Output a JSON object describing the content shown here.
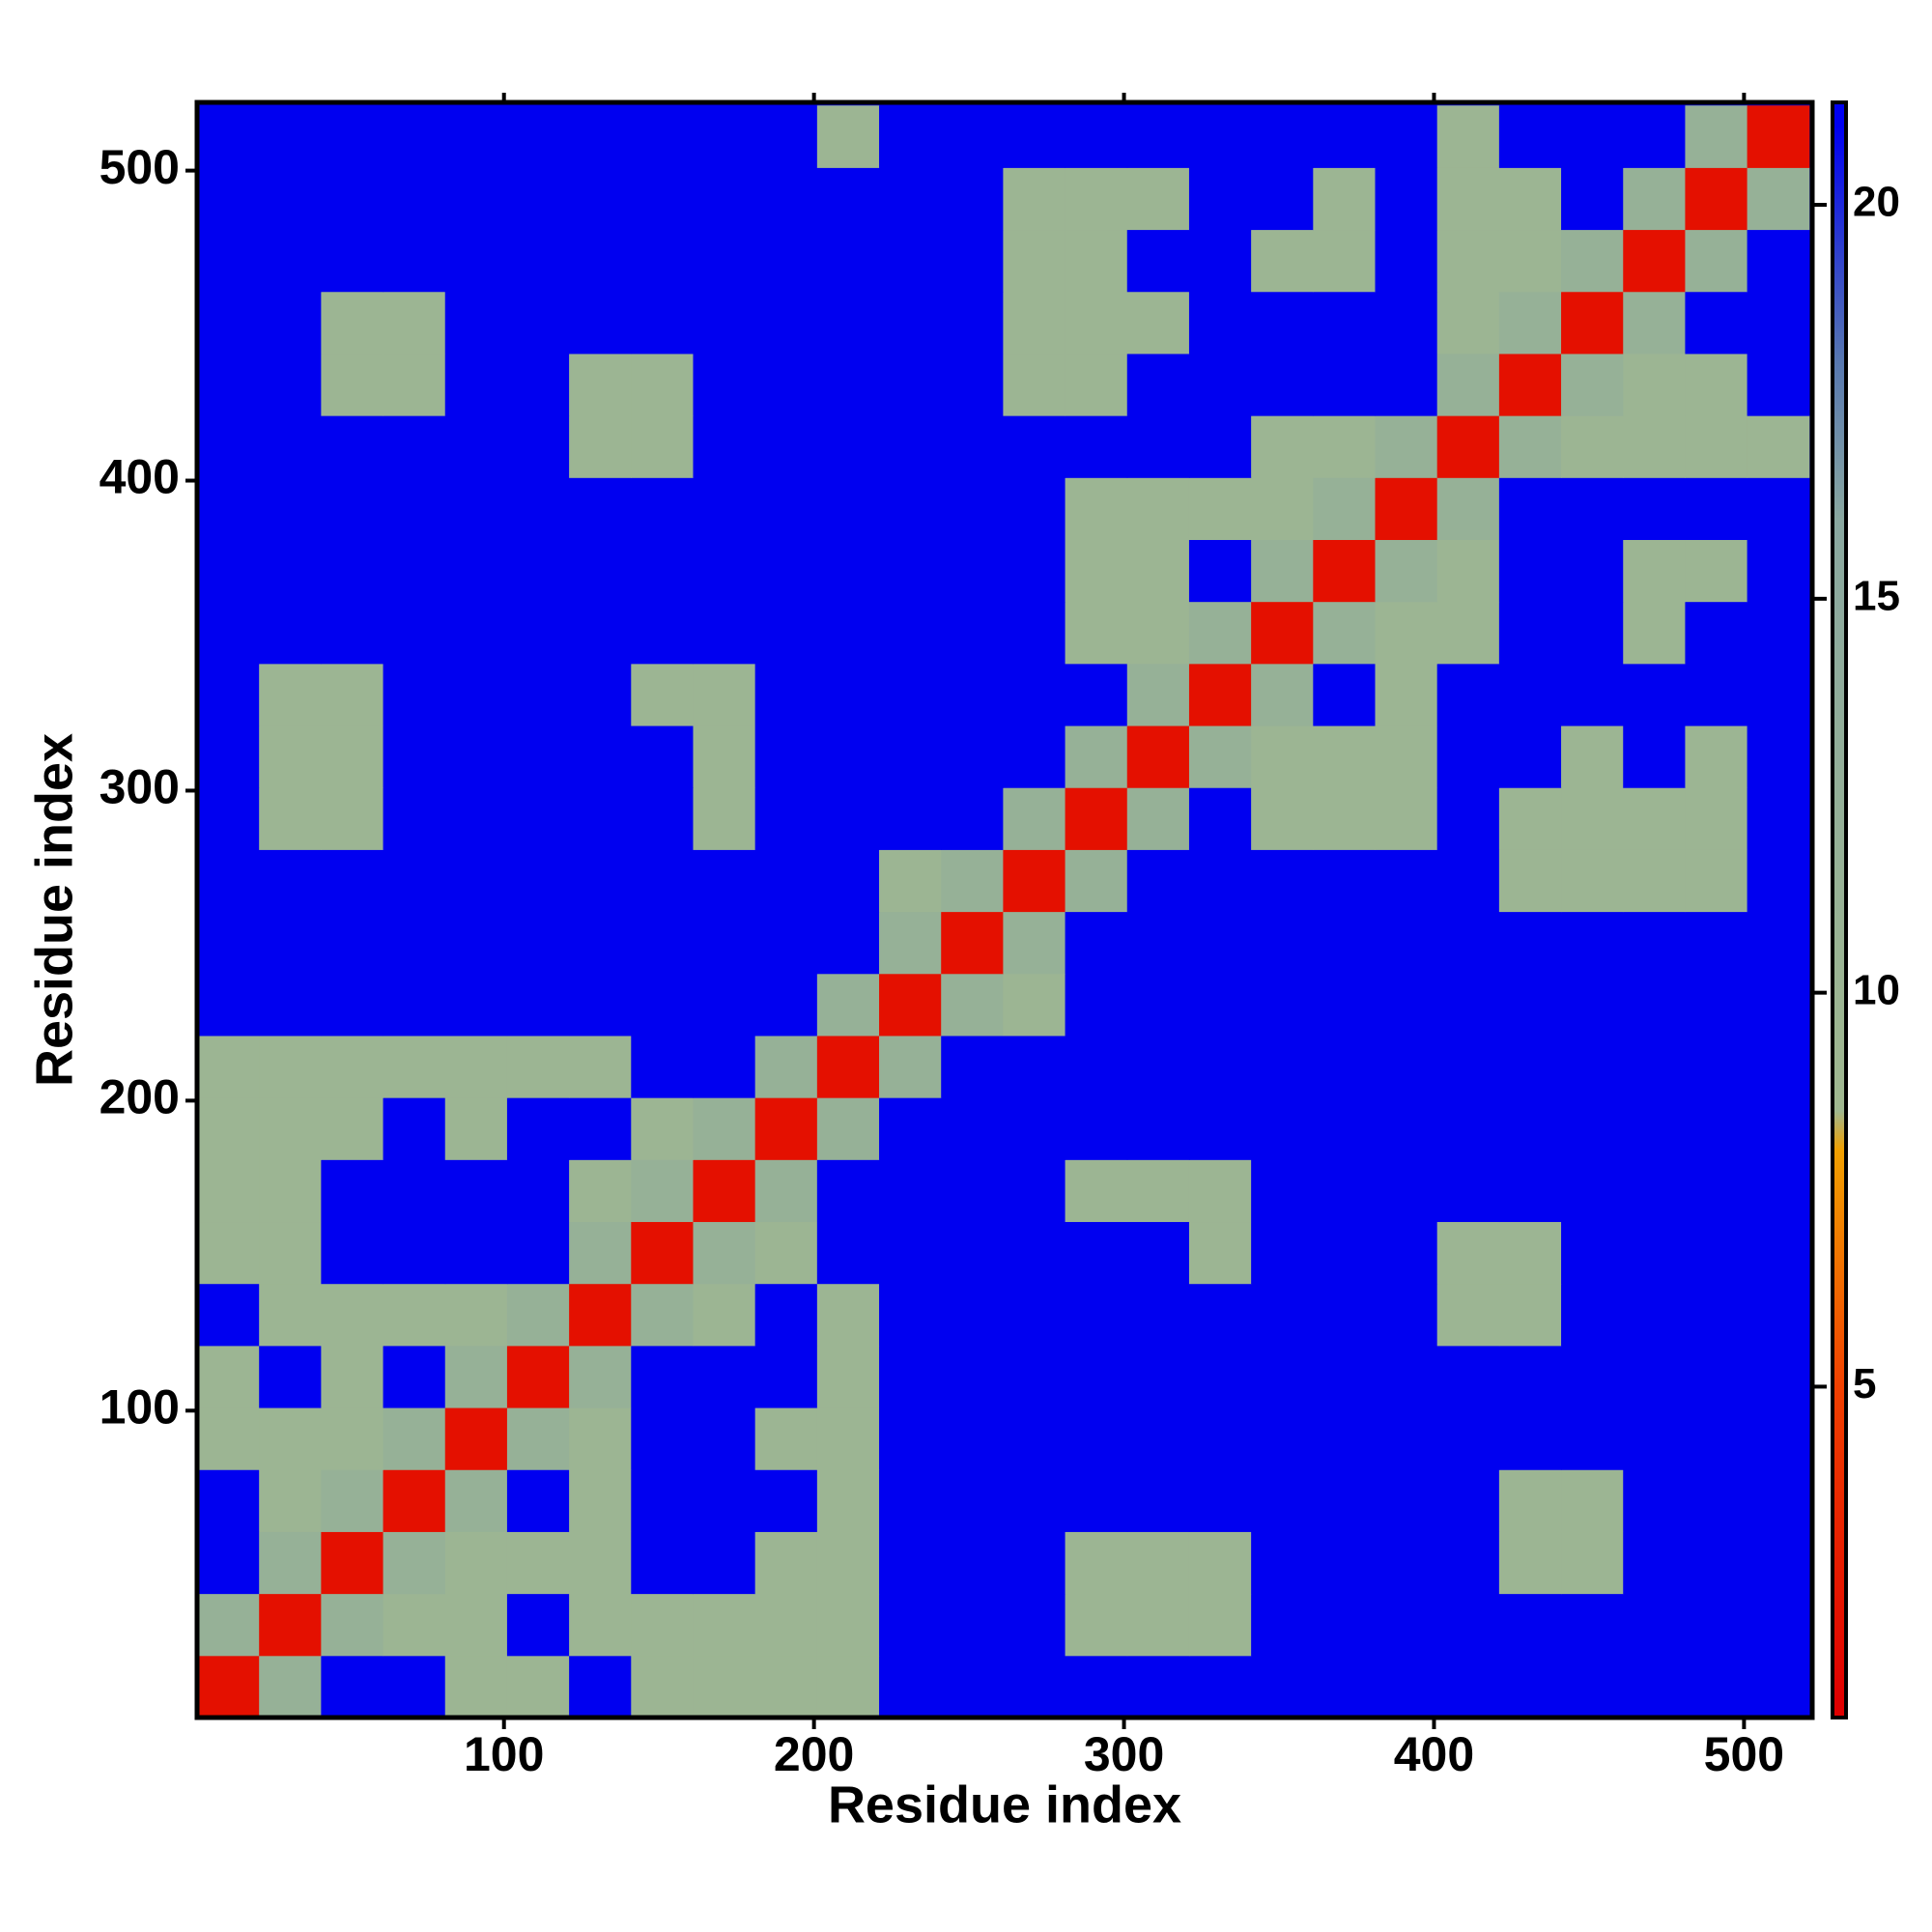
{
  "chart_data": {
    "type": "heatmap",
    "xlabel": "Residue index",
    "ylabel": "Residue index",
    "x": [
      1,
      21,
      41,
      61,
      81,
      101,
      121,
      141,
      161,
      181,
      201,
      221,
      241,
      261,
      281,
      301,
      321,
      341,
      361,
      381,
      401,
      421,
      441,
      461,
      481,
      501,
      521
    ],
    "y": [
      1,
      21,
      41,
      61,
      81,
      101,
      121,
      141,
      161,
      181,
      201,
      221,
      241,
      261,
      281,
      301,
      321,
      341,
      361,
      381,
      401,
      421,
      441,
      461,
      481,
      501,
      521
    ],
    "xlim": [
      1,
      522
    ],
    "ylim": [
      1,
      522
    ],
    "xticks": [
      100,
      200,
      300,
      400,
      500
    ],
    "yticks": [
      100,
      200,
      300,
      400,
      500
    ],
    "values": [
      [
        2,
        12,
        21,
        21,
        10,
        10,
        21,
        10,
        10,
        10,
        10,
        21,
        21,
        21,
        21,
        21,
        21,
        21,
        21,
        21,
        21,
        21,
        21,
        21,
        21,
        21
      ],
      [
        12,
        2,
        12,
        10,
        10,
        21,
        10,
        10,
        10,
        10,
        10,
        21,
        21,
        21,
        10,
        10,
        10,
        21,
        21,
        21,
        21,
        21,
        21,
        21,
        21,
        21
      ],
      [
        21,
        12,
        2,
        12,
        10,
        10,
        10,
        21,
        21,
        10,
        10,
        21,
        21,
        21,
        10,
        10,
        10,
        21,
        21,
        21,
        21,
        10,
        10,
        21,
        21,
        21
      ],
      [
        21,
        10,
        12,
        2,
        12,
        21,
        10,
        21,
        21,
        21,
        10,
        21,
        21,
        21,
        21,
        21,
        21,
        21,
        21,
        21,
        21,
        10,
        10,
        21,
        21,
        21
      ],
      [
        10,
        10,
        10,
        12,
        2,
        12,
        10,
        21,
        21,
        10,
        10,
        21,
        21,
        21,
        21,
        21,
        21,
        21,
        21,
        21,
        21,
        21,
        21,
        21,
        21,
        21
      ],
      [
        10,
        21,
        10,
        21,
        12,
        2,
        12,
        21,
        21,
        21,
        10,
        21,
        21,
        21,
        21,
        21,
        21,
        21,
        21,
        21,
        21,
        21,
        21,
        21,
        21,
        21
      ],
      [
        21,
        10,
        10,
        10,
        10,
        12,
        2,
        12,
        10,
        21,
        10,
        21,
        21,
        21,
        21,
        21,
        21,
        21,
        21,
        21,
        10,
        10,
        21,
        21,
        21,
        21
      ],
      [
        10,
        10,
        21,
        21,
        21,
        21,
        12,
        2,
        12,
        10,
        21,
        21,
        21,
        21,
        21,
        21,
        10,
        21,
        21,
        21,
        10,
        10,
        21,
        21,
        21,
        21
      ],
      [
        10,
        10,
        21,
        21,
        21,
        21,
        10,
        12,
        2,
        12,
        21,
        21,
        21,
        21,
        10,
        10,
        10,
        21,
        21,
        21,
        21,
        21,
        21,
        21,
        21,
        21
      ],
      [
        10,
        10,
        10,
        21,
        10,
        21,
        21,
        10,
        12,
        2,
        12,
        21,
        21,
        21,
        21,
        21,
        21,
        21,
        21,
        21,
        21,
        21,
        21,
        21,
        21,
        21
      ],
      [
        10,
        10,
        10,
        10,
        10,
        10,
        10,
        21,
        21,
        12,
        2,
        12,
        21,
        21,
        21,
        21,
        21,
        21,
        21,
        21,
        21,
        21,
        21,
        21,
        21,
        21
      ],
      [
        21,
        21,
        21,
        21,
        21,
        21,
        21,
        21,
        21,
        21,
        12,
        2,
        12,
        10,
        21,
        21,
        21,
        21,
        21,
        21,
        21,
        21,
        21,
        21,
        21,
        21
      ],
      [
        21,
        21,
        21,
        21,
        21,
        21,
        21,
        21,
        21,
        21,
        21,
        12,
        2,
        12,
        21,
        21,
        21,
        21,
        21,
        21,
        21,
        21,
        21,
        21,
        21,
        21
      ],
      [
        21,
        21,
        21,
        21,
        21,
        21,
        21,
        21,
        21,
        21,
        21,
        10,
        12,
        2,
        12,
        21,
        21,
        21,
        21,
        21,
        21,
        10,
        10,
        10,
        10,
        21
      ],
      [
        21,
        10,
        10,
        21,
        21,
        21,
        21,
        21,
        10,
        21,
        21,
        21,
        21,
        12,
        2,
        12,
        21,
        10,
        10,
        10,
        21,
        10,
        10,
        10,
        10,
        21
      ],
      [
        21,
        10,
        10,
        21,
        21,
        21,
        21,
        21,
        10,
        21,
        21,
        21,
        21,
        21,
        12,
        2,
        12,
        10,
        10,
        10,
        21,
        21,
        10,
        21,
        10,
        21
      ],
      [
        21,
        10,
        10,
        21,
        21,
        21,
        21,
        10,
        10,
        21,
        21,
        21,
        21,
        21,
        21,
        12,
        2,
        12,
        21,
        10,
        21,
        21,
        21,
        21,
        21,
        21
      ],
      [
        21,
        21,
        21,
        21,
        21,
        21,
        21,
        21,
        21,
        21,
        21,
        21,
        21,
        21,
        10,
        10,
        12,
        2,
        12,
        10,
        10,
        21,
        21,
        10,
        21,
        21
      ],
      [
        21,
        21,
        21,
        21,
        21,
        21,
        21,
        21,
        21,
        21,
        21,
        21,
        21,
        21,
        10,
        10,
        21,
        12,
        2,
        12,
        10,
        21,
        21,
        10,
        10,
        21
      ],
      [
        21,
        21,
        21,
        21,
        21,
        21,
        21,
        21,
        21,
        21,
        21,
        21,
        21,
        21,
        10,
        10,
        10,
        10,
        12,
        2,
        12,
        21,
        21,
        21,
        21,
        21
      ],
      [
        21,
        21,
        21,
        21,
        21,
        21,
        10,
        10,
        21,
        21,
        21,
        21,
        21,
        21,
        21,
        21,
        21,
        10,
        10,
        12,
        2,
        12,
        10,
        10,
        10,
        10
      ],
      [
        21,
        21,
        10,
        10,
        21,
        21,
        10,
        10,
        21,
        21,
        21,
        21,
        21,
        10,
        10,
        21,
        21,
        21,
        21,
        21,
        12,
        2,
        12,
        10,
        10,
        21
      ],
      [
        21,
        21,
        10,
        10,
        21,
        21,
        21,
        21,
        21,
        21,
        21,
        21,
        21,
        10,
        10,
        10,
        21,
        21,
        21,
        21,
        10,
        12,
        2,
        12,
        21,
        21
      ],
      [
        21,
        21,
        21,
        21,
        21,
        21,
        21,
        21,
        21,
        21,
        21,
        21,
        21,
        10,
        10,
        21,
        21,
        10,
        10,
        21,
        10,
        10,
        12,
        2,
        12,
        21
      ],
      [
        21,
        21,
        21,
        21,
        21,
        21,
        21,
        21,
        21,
        21,
        21,
        21,
        21,
        10,
        10,
        10,
        21,
        21,
        10,
        21,
        10,
        10,
        21,
        12,
        2,
        12
      ],
      [
        21,
        21,
        21,
        21,
        21,
        21,
        21,
        21,
        21,
        21,
        10,
        21,
        21,
        21,
        21,
        21,
        21,
        21,
        21,
        21,
        10,
        21,
        21,
        21,
        12,
        2
      ]
    ],
    "colorbar": {
      "lim": [
        0.8,
        21.3
      ],
      "ticks": [
        5,
        10,
        15,
        20
      ]
    },
    "colorscale": [
      [
        1,
        "#e00000"
      ],
      [
        5,
        "#f04000"
      ],
      [
        8,
        "#f0a000"
      ],
      [
        8.5,
        "#a0b890"
      ],
      [
        16,
        "#8aa8a0"
      ],
      [
        18,
        "#5878b0"
      ],
      [
        21,
        "#0000f0"
      ]
    ]
  }
}
